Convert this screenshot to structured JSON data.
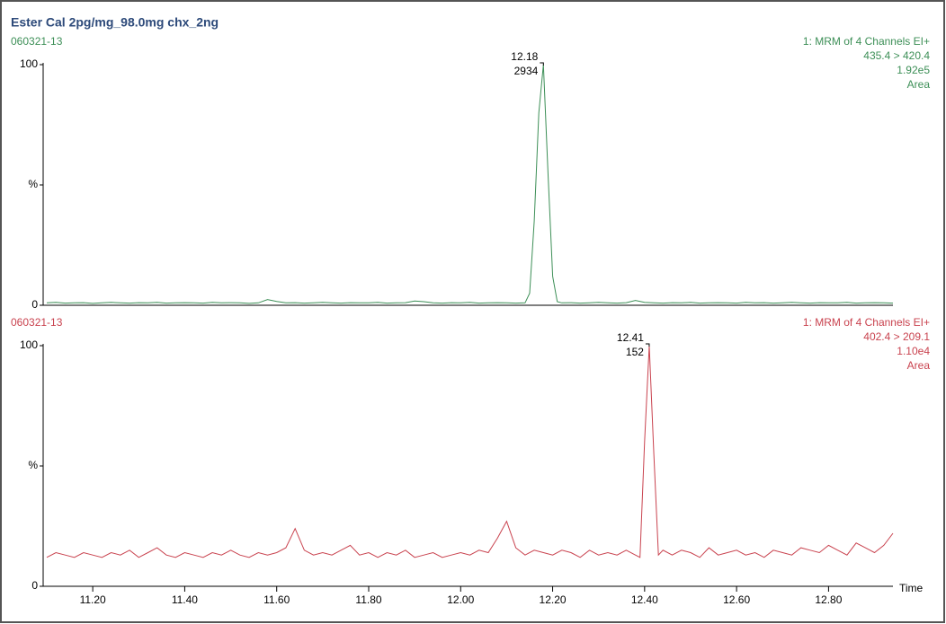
{
  "chart_data": [
    {
      "type": "line",
      "title": "Ester Cal 2pg/mg_98.0mg chx_2ng",
      "sample": "060321-13",
      "info": [
        "1: MRM of 4 Channels EI+",
        "435.4 > 420.4",
        "1.92e5",
        "Area"
      ],
      "color": "#3d8f57",
      "peak": {
        "time": 12.18,
        "area": 2934
      },
      "xlim": [
        11.1,
        12.94
      ],
      "ylim": [
        0,
        100
      ],
      "yticks": [
        0,
        {
          "value": 50,
          "label": "%"
        },
        100
      ],
      "x": [
        11.1,
        11.12,
        11.14,
        11.16,
        11.18,
        11.2,
        11.22,
        11.24,
        11.26,
        11.28,
        11.3,
        11.32,
        11.34,
        11.36,
        11.38,
        11.4,
        11.42,
        11.44,
        11.46,
        11.48,
        11.5,
        11.52,
        11.54,
        11.56,
        11.58,
        11.6,
        11.62,
        11.64,
        11.66,
        11.68,
        11.7,
        11.72,
        11.74,
        11.76,
        11.78,
        11.8,
        11.82,
        11.84,
        11.86,
        11.88,
        11.9,
        11.92,
        11.94,
        11.96,
        11.98,
        12.0,
        12.02,
        12.04,
        12.06,
        12.08,
        12.1,
        12.12,
        12.14,
        12.15,
        12.16,
        12.17,
        12.18,
        12.19,
        12.2,
        12.21,
        12.22,
        12.24,
        12.26,
        12.28,
        12.3,
        12.32,
        12.34,
        12.36,
        12.38,
        12.4,
        12.42,
        12.44,
        12.46,
        12.48,
        12.5,
        12.52,
        12.54,
        12.56,
        12.58,
        12.6,
        12.62,
        12.64,
        12.66,
        12.68,
        12.7,
        12.72,
        12.74,
        12.76,
        12.78,
        12.8,
        12.82,
        12.84,
        12.86,
        12.88,
        12.9,
        12.92,
        12.94
      ],
      "values": [
        1,
        1.2,
        0.9,
        1,
        1.1,
        0.8,
        1,
        1.2,
        1,
        0.9,
        1.1,
        1,
        1.2,
        0.9,
        1,
        1.1,
        1,
        0.9,
        1.2,
        1,
        1.1,
        1,
        0.8,
        1,
        2.4,
        1.6,
        1,
        1.1,
        0.9,
        1,
        1.2,
        1,
        0.9,
        1.1,
        1,
        1,
        1.2,
        0.9,
        1,
        1.1,
        1.8,
        1.5,
        1,
        0.9,
        1.1,
        1,
        1.2,
        0.9,
        1,
        1.1,
        1,
        0.9,
        1,
        5,
        35,
        80,
        100,
        55,
        12,
        1.5,
        1,
        1.1,
        0.9,
        1,
        1.2,
        1,
        0.9,
        1.1,
        2,
        1.2,
        1,
        0.9,
        1.1,
        1,
        1.2,
        0.9,
        1,
        1.1,
        1,
        0.9,
        1.2,
        1,
        1.1,
        0.9,
        1,
        1.2,
        1,
        0.9,
        1.1,
        1,
        1,
        1.2,
        0.9,
        1,
        1.1,
        1,
        0.9
      ]
    },
    {
      "type": "line",
      "sample": "060321-13",
      "info": [
        "1: MRM of 4 Channels EI+",
        "402.4 > 209.1",
        "1.10e4",
        "Area"
      ],
      "color": "#c9434f",
      "peak": {
        "time": 12.41,
        "area": 152
      },
      "xlabel": "Time",
      "xlim": [
        11.1,
        12.94
      ],
      "ylim": [
        0,
        100
      ],
      "yticks": [
        0,
        {
          "value": 50,
          "label": "%"
        },
        100
      ],
      "xticks": [
        {
          "value": 11.2,
          "label": "11.20"
        },
        {
          "value": 11.4,
          "label": "11.40"
        },
        {
          "value": 11.6,
          "label": "11.60"
        },
        {
          "value": 11.8,
          "label": "11.80"
        },
        {
          "value": 12.0,
          "label": "12.00"
        },
        {
          "value": 12.2,
          "label": "12.20"
        },
        {
          "value": 12.4,
          "label": "12.40"
        },
        {
          "value": 12.6,
          "label": "12.60"
        },
        {
          "value": 12.8,
          "label": "12.80"
        }
      ],
      "x": [
        11.1,
        11.12,
        11.14,
        11.16,
        11.18,
        11.2,
        11.22,
        11.24,
        11.26,
        11.28,
        11.3,
        11.32,
        11.34,
        11.36,
        11.38,
        11.4,
        11.42,
        11.44,
        11.46,
        11.48,
        11.5,
        11.52,
        11.54,
        11.56,
        11.58,
        11.6,
        11.62,
        11.64,
        11.66,
        11.68,
        11.7,
        11.72,
        11.74,
        11.76,
        11.78,
        11.8,
        11.82,
        11.84,
        11.86,
        11.88,
        11.9,
        11.92,
        11.94,
        11.96,
        11.98,
        12.0,
        12.02,
        12.04,
        12.06,
        12.08,
        12.1,
        12.12,
        12.14,
        12.16,
        12.18,
        12.2,
        12.22,
        12.24,
        12.26,
        12.28,
        12.3,
        12.32,
        12.34,
        12.36,
        12.38,
        12.39,
        12.4,
        12.41,
        12.42,
        12.43,
        12.44,
        12.46,
        12.48,
        12.5,
        12.52,
        12.54,
        12.56,
        12.58,
        12.6,
        12.62,
        12.64,
        12.66,
        12.68,
        12.7,
        12.72,
        12.74,
        12.76,
        12.78,
        12.8,
        12.82,
        12.84,
        12.86,
        12.88,
        12.9,
        12.92,
        12.94
      ],
      "values": [
        12,
        14,
        13,
        12,
        14,
        13,
        12,
        14,
        13,
        15,
        12,
        14,
        16,
        13,
        12,
        14,
        13,
        12,
        14,
        13,
        15,
        13,
        12,
        14,
        13,
        14,
        16,
        24,
        15,
        13,
        14,
        13,
        15,
        17,
        13,
        14,
        12,
        14,
        13,
        15,
        12,
        13,
        14,
        12,
        13,
        14,
        13,
        15,
        14,
        20,
        27,
        16,
        13,
        15,
        14,
        13,
        15,
        14,
        12,
        15,
        13,
        14,
        13,
        15,
        13,
        12,
        60,
        100,
        55,
        13,
        15,
        13,
        15,
        14,
        12,
        16,
        13,
        14,
        15,
        13,
        14,
        12,
        15,
        14,
        13,
        16,
        15,
        14,
        17,
        15,
        13,
        18,
        16,
        14,
        17,
        22
      ]
    }
  ]
}
